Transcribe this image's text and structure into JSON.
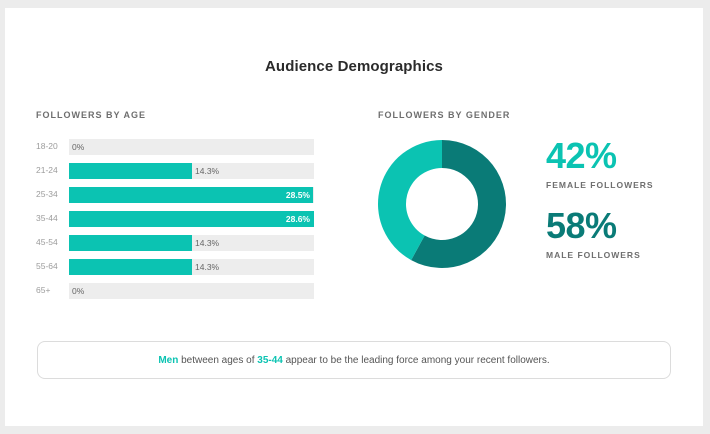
{
  "title": "Audience Demographics",
  "age_section": {
    "heading": "FOLLOWERS BY AGE",
    "rows": [
      {
        "label": "18-20",
        "value": "0%"
      },
      {
        "label": "21-24",
        "value": "14.3%"
      },
      {
        "label": "25-34",
        "value": "28.5%"
      },
      {
        "label": "35-44",
        "value": "28.6%"
      },
      {
        "label": "45-54",
        "value": "14.3%"
      },
      {
        "label": "55-64",
        "value": "14.3%"
      },
      {
        "label": "65+",
        "value": "0%"
      }
    ]
  },
  "gender_section": {
    "heading": "FOLLOWERS BY GENDER",
    "female": {
      "value": "42%",
      "label": "FEMALE FOLLOWERS",
      "color": "#0bc3b2"
    },
    "male": {
      "value": "58%",
      "label": "MALE FOLLOWERS",
      "color": "#0a7b77"
    }
  },
  "callout": {
    "highlight_gender": "Men",
    "text_1": " between ages of ",
    "highlight_age": "35-44",
    "text_2": " appear to be the leading force among your recent followers."
  },
  "colors": {
    "accent": "#0bc3b2",
    "accent_dark": "#0a7b77",
    "track": "#ededed",
    "background": "#ececec"
  },
  "chart_data": [
    {
      "type": "bar",
      "orientation": "horizontal",
      "title": "FOLLOWERS BY AGE",
      "categories": [
        "18-20",
        "21-24",
        "25-34",
        "35-44",
        "45-54",
        "55-64",
        "65+"
      ],
      "values": [
        0,
        14.3,
        28.5,
        28.6,
        14.3,
        14.3,
        0
      ],
      "unit": "%",
      "xlabel": "",
      "ylabel": "",
      "xlim": [
        0,
        28.6
      ],
      "grid": false,
      "legend": null
    },
    {
      "type": "pie",
      "variant": "donut",
      "title": "FOLLOWERS BY GENDER",
      "categories": [
        "Male",
        "Female"
      ],
      "values": [
        58,
        42
      ],
      "colors": [
        "#0a7b77",
        "#0bc3b2"
      ],
      "unit": "%",
      "start_angle": "top, clockwise"
    }
  ]
}
